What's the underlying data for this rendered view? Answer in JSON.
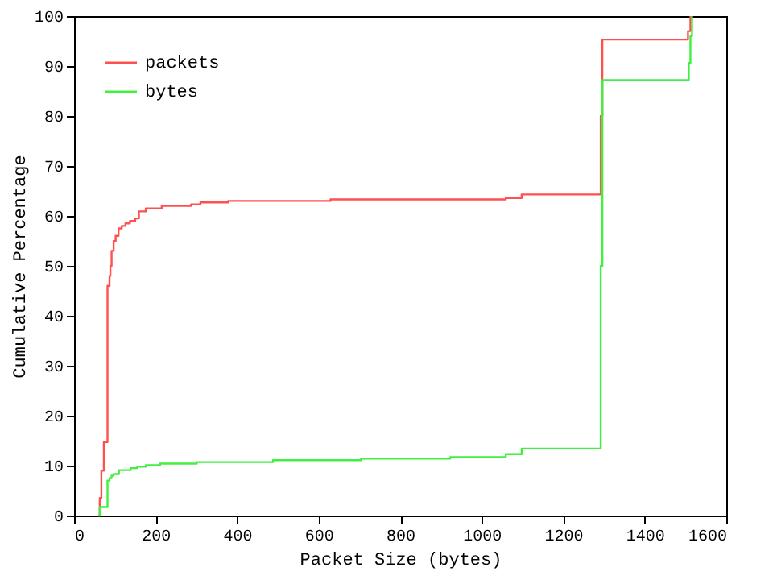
{
  "chart_data": {
    "type": "step",
    "xlabel": "Packet Size (bytes)",
    "ylabel": "Cumulative Percentage",
    "xlim": [
      0,
      1600
    ],
    "xticks": [
      0,
      200,
      400,
      600,
      800,
      1000,
      1200,
      1400,
      1600
    ],
    "ylim": [
      0,
      100
    ],
    "yticks": [
      0,
      10,
      20,
      30,
      40,
      50,
      60,
      70,
      80,
      90,
      100
    ],
    "grid": false,
    "legend": "top left",
    "line_style": "solid",
    "marker": "none",
    "series": [
      {
        "name": "packets",
        "color": "#ff5050",
        "x": [
          60,
          63,
          67,
          73,
          82,
          87,
          89,
          92,
          97,
          102,
          109,
          117,
          126,
          137,
          150,
          159,
          176,
          215,
          287,
          310,
          378,
          629,
          1059,
          1098,
          1292,
          1296,
          1506,
          1512
        ],
        "values": [
          0,
          3.5,
          9,
          14.7,
          46,
          48,
          50,
          53,
          55,
          56,
          57.5,
          58,
          58.5,
          59,
          59.5,
          60.9,
          61.5,
          62,
          62.3,
          62.7,
          63,
          63.3,
          63.6,
          64.3,
          80,
          95.3,
          97,
          100
        ]
      },
      {
        "name": "bytes",
        "color": "#40f040",
        "x": [
          60,
          63,
          82,
          87,
          92,
          97,
          110,
          139,
          155,
          176,
          211,
          301,
          488,
          704,
          923,
          1059,
          1098,
          1292,
          1296,
          1508,
          1512,
          1516
        ],
        "values": [
          0,
          1.7,
          7,
          7.5,
          8,
          8.3,
          9.1,
          9.5,
          9.8,
          10.1,
          10.4,
          10.7,
          11.1,
          11.4,
          11.7,
          12.3,
          13.4,
          50,
          87.2,
          90.6,
          96,
          100
        ]
      }
    ]
  }
}
